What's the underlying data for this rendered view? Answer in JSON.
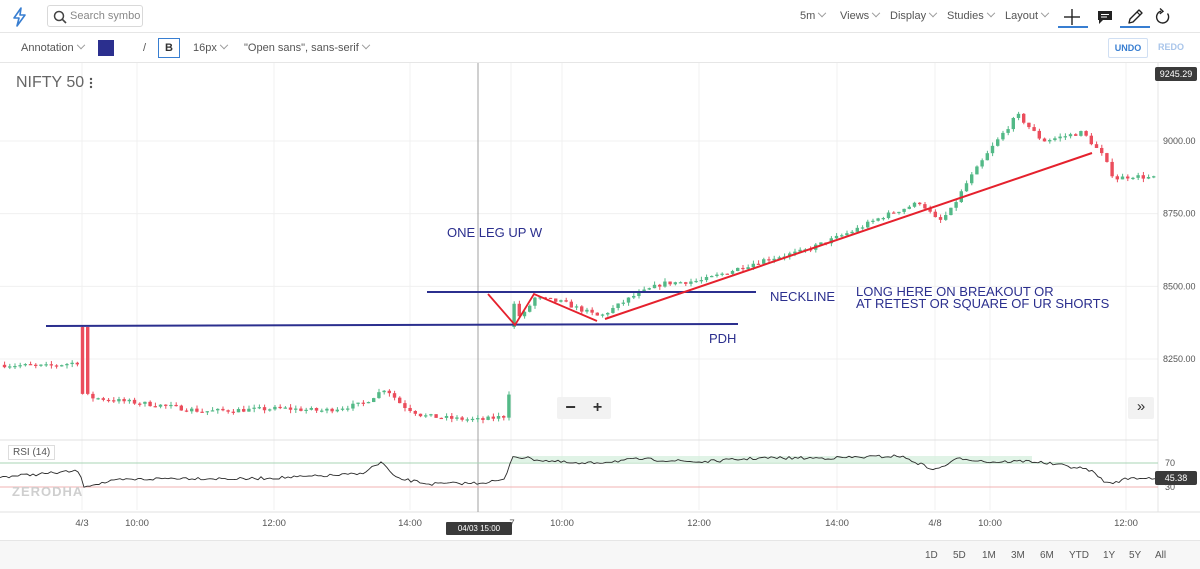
{
  "toolbar": {
    "search_placeholder": "Search symbol",
    "interval": "5m",
    "views": "Views",
    "display": "Display",
    "studies": "Studies",
    "layout": "Layout"
  },
  "annotation_toolbar": {
    "tool": "Annotation",
    "color": "#2b2f8e",
    "slash": "/",
    "bold": "B",
    "font_size": "16px",
    "font_family": "\"Open sans\", sans-serif",
    "undo": "UNDO",
    "redo": "REDO"
  },
  "chart": {
    "symbol": "NIFTY 50",
    "rsi_label": "RSI (14)",
    "watermark": "ZERODHA",
    "current_price": "9245.29",
    "rsi_value": "45.38",
    "crosshair_time": "04/03 15:00",
    "price_ticks": [
      "9000.00",
      "8750.00",
      "8500.00",
      "8250.00"
    ],
    "rsi_ticks": [
      "70",
      "30"
    ],
    "time_ticks": [
      "4/3",
      "10:00",
      "12:00",
      "14:00",
      "10:00",
      "12:00",
      "14:00",
      "4/8",
      "10:00",
      "12:00"
    ],
    "annotations": {
      "pattern": "ONE LEG UP W",
      "neckline": "NECKLINE",
      "pdh": "PDH",
      "long_line1": "LONG HERE ON BREAKOUT OR",
      "long_line2": "AT RETEST OR SQUARE OF UR SHORTS"
    }
  },
  "controls": {
    "zoom_out": "−",
    "zoom_in": "+",
    "scroll_right": "»"
  },
  "periods": [
    "1D",
    "5D",
    "1M",
    "3M",
    "6M",
    "YTD",
    "1Y",
    "5Y",
    "All"
  ],
  "colors": {
    "up": "#53b987",
    "down": "#eb4d5c",
    "annotation_blue": "#2b2f8e",
    "trendline_red": "#e5212d",
    "accent": "#387ed1"
  }
}
